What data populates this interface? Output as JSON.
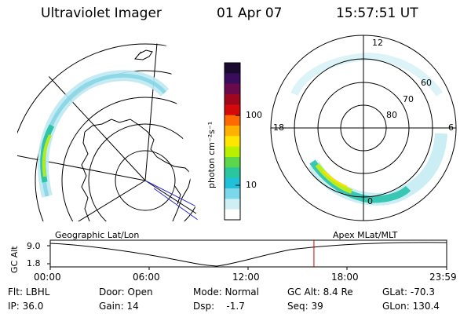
{
  "header": {
    "title": "Ultraviolet Imager",
    "date": "01 Apr 07",
    "time": "15:57:51 UT"
  },
  "colorbar": {
    "unit_label": "photon cm⁻²s⁻¹",
    "ticks": [
      "100",
      "10"
    ],
    "colors": [
      "#1a0a2e",
      "#3a0d5c",
      "#6a0a4a",
      "#a0061e",
      "#d40a0a",
      "#ff6a00",
      "#ffb000",
      "#ffe600",
      "#b8f000",
      "#5cd64a",
      "#2ac6a0",
      "#20c0d8",
      "#7ad8ea",
      "#cfeff5",
      "#ffffff"
    ]
  },
  "geo_map": {
    "label": "Geographic Lat/Lon"
  },
  "mag_map": {
    "label": "Apex MLat/MLT",
    "mlt_labels": {
      "top": "12",
      "left": "18",
      "right": "6",
      "bottom": "0"
    },
    "lat_labels": [
      "60",
      "70",
      "80"
    ]
  },
  "timeline": {
    "ylabel": "GC Alt",
    "yticks": [
      "9.0",
      "1.8"
    ],
    "xticks": [
      "00:00",
      "06:00",
      "12:00",
      "18:00",
      "23:59"
    ],
    "marker_fraction": 0.6652
  },
  "info": {
    "flt": "Flt: LBHL",
    "ip": "IP: 36.0",
    "door": "Door: Open",
    "gain": "Gain: 14",
    "mode": "Mode: Normal",
    "dsp": "Dsp:    -1.7",
    "gcalt": "GC Alt: 8.4 Re",
    "seq": "Seq: 39",
    "glat": "GLat: -70.3",
    "glon": "GLon: 130.4"
  }
}
